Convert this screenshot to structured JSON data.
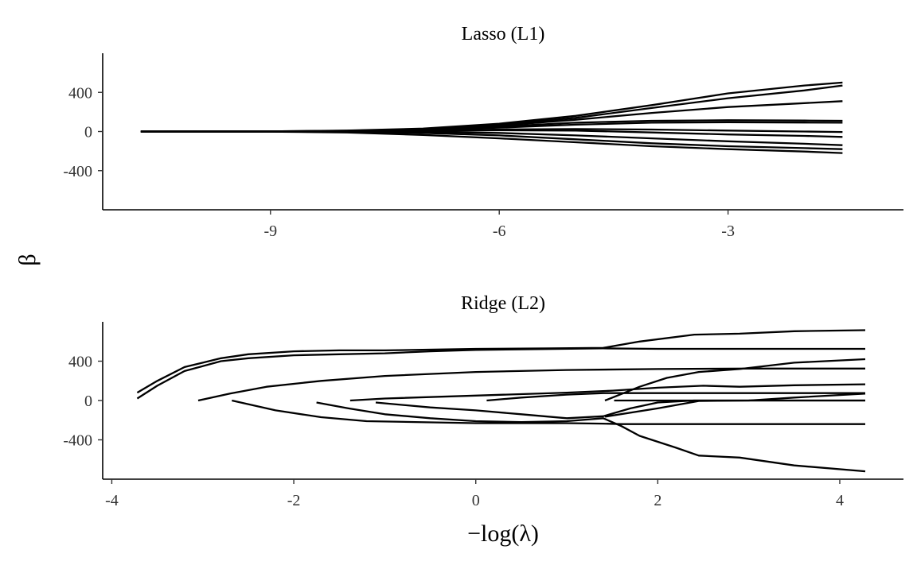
{
  "chart_data": [
    {
      "type": "line",
      "title": "Lasso (L1)",
      "xlabel": "",
      "ylabel": "β",
      "xlim": [
        -11.2,
        -0.7
      ],
      "ylim": [
        -800,
        800
      ],
      "xticks": [
        -9,
        -6,
        -3
      ],
      "yticks": [
        -400,
        0,
        400
      ],
      "ytick_labels": [
        "-400",
        "0",
        "400"
      ],
      "xtick_labels": [
        "-9",
        "-6",
        "-3"
      ],
      "line_color": "#000000",
      "grid": false,
      "series": [
        {
          "x": [
            -10.7,
            -9,
            -8,
            -7,
            -6,
            -5,
            -4,
            -3,
            -2,
            -1.5
          ],
          "y": [
            0,
            2,
            10,
            30,
            80,
            160,
            270,
            390,
            470,
            500
          ]
        },
        {
          "x": [
            -10.7,
            -9,
            -8,
            -7,
            -6,
            -5,
            -4,
            -3,
            -2,
            -1.5
          ],
          "y": [
            0,
            2,
            8,
            25,
            70,
            140,
            240,
            340,
            420,
            470
          ]
        },
        {
          "x": [
            -10.7,
            -9,
            -8,
            -7,
            -6,
            -5,
            -4,
            -3,
            -2,
            -1.5
          ],
          "y": [
            0,
            1,
            6,
            20,
            60,
            120,
            190,
            250,
            290,
            310
          ]
        },
        {
          "x": [
            -10.7,
            -9,
            -8,
            -7,
            -6,
            -5,
            -4,
            -3,
            -2,
            -1.5
          ],
          "y": [
            0,
            1,
            5,
            15,
            50,
            90,
            110,
            115,
            112,
            110
          ]
        },
        {
          "x": [
            -10.7,
            -9,
            -8,
            -7,
            -6,
            -5,
            -4,
            -3,
            -2,
            -1.5
          ],
          "y": [
            0,
            1,
            4,
            12,
            40,
            70,
            90,
            95,
            92,
            90
          ]
        },
        {
          "x": [
            -10.7,
            -9,
            -8,
            -7,
            -6,
            -5,
            -4,
            -3,
            -2,
            -1.5
          ],
          "y": [
            0,
            0,
            2,
            8,
            20,
            25,
            20,
            10,
            0,
            -5
          ]
        },
        {
          "x": [
            -10.7,
            -9,
            -8,
            -7,
            -6,
            -5,
            -4,
            -3,
            -2,
            -1.5
          ],
          "y": [
            0,
            0,
            2,
            5,
            12,
            10,
            -10,
            -30,
            -45,
            -55
          ]
        },
        {
          "x": [
            -10.7,
            -9,
            -8,
            -7,
            -6,
            -5,
            -4,
            -3,
            -2,
            -1.5
          ],
          "y": [
            0,
            0,
            1,
            -5,
            -15,
            -40,
            -70,
            -100,
            -125,
            -140
          ]
        },
        {
          "x": [
            -10.7,
            -9,
            -8,
            -7,
            -6,
            -5,
            -4,
            -3,
            -2,
            -1.5
          ],
          "y": [
            0,
            -1,
            -5,
            -15,
            -40,
            -80,
            -120,
            -150,
            -170,
            -180
          ]
        },
        {
          "x": [
            -10.7,
            -9,
            -8,
            -7,
            -6,
            -5,
            -4,
            -3,
            -2,
            -1.5
          ],
          "y": [
            0,
            -2,
            -10,
            -35,
            -70,
            -110,
            -150,
            -180,
            -205,
            -220
          ]
        }
      ]
    },
    {
      "type": "line",
      "title": "Ridge (L2)",
      "xlabel": "−log(λ)",
      "ylabel": "β",
      "xlim": [
        -4.1,
        4.7
      ],
      "ylim": [
        -800,
        800
      ],
      "xticks": [
        -4,
        -2,
        0,
        2,
        4
      ],
      "yticks": [
        -400,
        0,
        400
      ],
      "ytick_labels": [
        "-400",
        "0",
        "400"
      ],
      "xtick_labels": [
        "-4",
        "-2",
        "0",
        "2",
        "4"
      ],
      "line_color": "#000000",
      "grid": false,
      "series": [
        {
          "x": [
            -3.72,
            -3.5,
            -3.2,
            -2.8,
            -2.5,
            -2.0,
            -1.5,
            -1.0,
            0.0,
            0.8,
            1.4,
            1.8,
            2.4,
            2.9,
            3.5,
            4.28
          ],
          "y": [
            80,
            200,
            340,
            430,
            470,
            500,
            510,
            510,
            525,
            530,
            535,
            600,
            670,
            680,
            705,
            715
          ]
        },
        {
          "x": [
            -3.72,
            -3.5,
            -3.2,
            -2.8,
            -2.5,
            -2.0,
            -1.5,
            -1.0,
            -0.5,
            0.0,
            1.4,
            2.0,
            3.0,
            4.28
          ],
          "y": [
            20,
            150,
            300,
            400,
            430,
            460,
            470,
            480,
            500,
            515,
            530,
            525,
            525,
            525
          ]
        },
        {
          "x": [
            -3.05,
            -2.7,
            -2.3,
            -1.7,
            -1.0,
            0.0,
            1.0,
            2.0,
            3.0,
            4.28
          ],
          "y": [
            0,
            70,
            140,
            200,
            250,
            290,
            310,
            320,
            325,
            325
          ]
        },
        {
          "x": [
            -2.68,
            -2.2,
            -1.7,
            -1.2,
            0.0,
            1.0,
            1.4,
            1.6,
            2.0,
            2.4,
            2.9,
            3.5,
            4.28
          ],
          "y": [
            0,
            -100,
            -170,
            -210,
            -230,
            -230,
            -235,
            -240,
            -240,
            -240,
            -240,
            -240,
            -240
          ]
        },
        {
          "x": [
            -1.75,
            -1.4,
            -1.0,
            -0.5,
            0.0,
            0.5,
            1.0,
            1.4,
            1.6,
            1.8,
            2.2,
            2.45,
            2.9,
            3.5,
            4.28
          ],
          "y": [
            -20,
            -80,
            -140,
            -180,
            -210,
            -220,
            -210,
            -180,
            -260,
            -360,
            -480,
            -560,
            -580,
            -660,
            -720
          ]
        },
        {
          "x": [
            -1.1,
            -0.5,
            0.0,
            0.5,
            1.0,
            1.4,
            1.7,
            2.0,
            2.4,
            3.0,
            4.28
          ],
          "y": [
            -20,
            -70,
            -100,
            -140,
            -180,
            -160,
            -80,
            -20,
            0,
            0,
            0
          ]
        },
        {
          "x": [
            -1.38,
            -1.0,
            0.0,
            1.0,
            1.5,
            2.0,
            2.5,
            2.9,
            3.5,
            4.28
          ],
          "y": [
            0,
            20,
            50,
            80,
            100,
            130,
            150,
            140,
            155,
            165
          ]
        },
        {
          "x": [
            0.12,
            0.5,
            1.0,
            1.4,
            2.0,
            2.5,
            3.0,
            3.5,
            4.28
          ],
          "y": [
            0,
            30,
            60,
            75,
            75,
            75,
            75,
            75,
            75
          ]
        },
        {
          "x": [
            1.42,
            1.8,
            2.1,
            2.45,
            2.9,
            3.5,
            4.28
          ],
          "y": [
            0,
            140,
            230,
            290,
            320,
            385,
            420
          ]
        },
        {
          "x": [
            1.52,
            2.0,
            3.0,
            4.28
          ],
          "y": [
            0,
            0,
            0,
            0
          ]
        },
        {
          "x": [
            1.42,
            2.0,
            2.45,
            3.0,
            3.5,
            4.28
          ],
          "y": [
            -165,
            -80,
            -5,
            0,
            30,
            70
          ]
        }
      ]
    }
  ],
  "y_axis_title": "β",
  "x_axis_title": "−log(λ)"
}
